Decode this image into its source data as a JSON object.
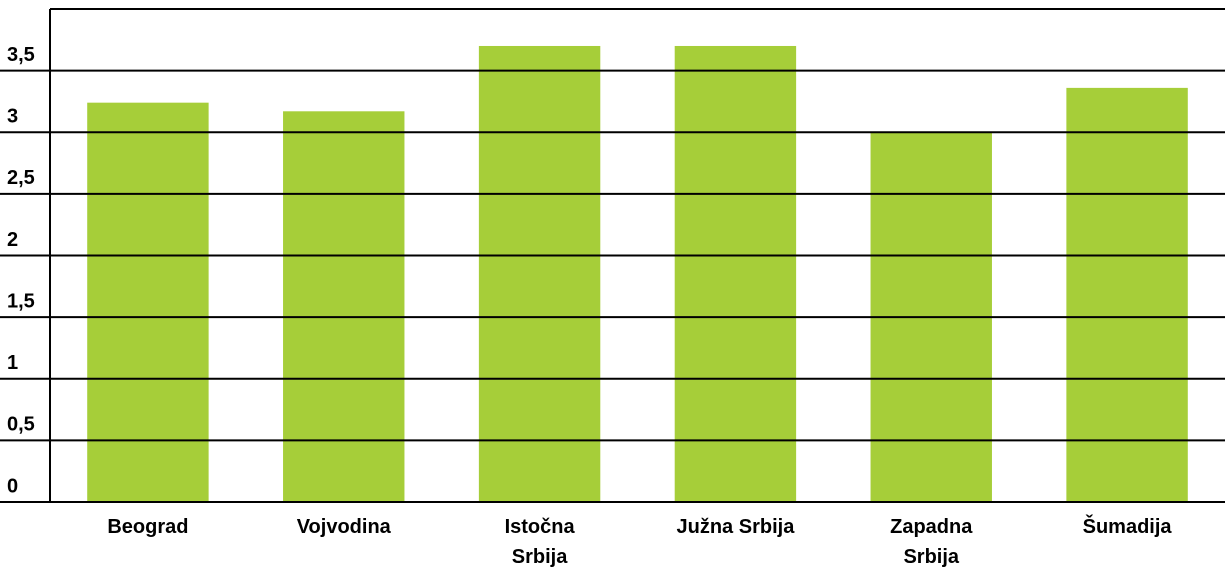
{
  "chart_data": {
    "type": "bar",
    "categories": [
      "Beograd",
      "Vojvodina",
      "Istočna Srbija",
      "Južna Srbija",
      "Zapadna Srbija",
      "Šumadija"
    ],
    "values": [
      3.24,
      3.17,
      3.7,
      3.7,
      3.0,
      3.36
    ],
    "color": "#a6ce39",
    "ylim": [
      0,
      4
    ],
    "yticks": [
      0,
      {
        "value": 0.5,
        "label": "0,5"
      },
      1,
      {
        "value": 1.5,
        "label": "1,5"
      },
      2,
      {
        "value": 2.5,
        "label": "2,5"
      },
      3,
      {
        "value": 3.5,
        "label": "3,5"
      }
    ],
    "grid": true
  }
}
